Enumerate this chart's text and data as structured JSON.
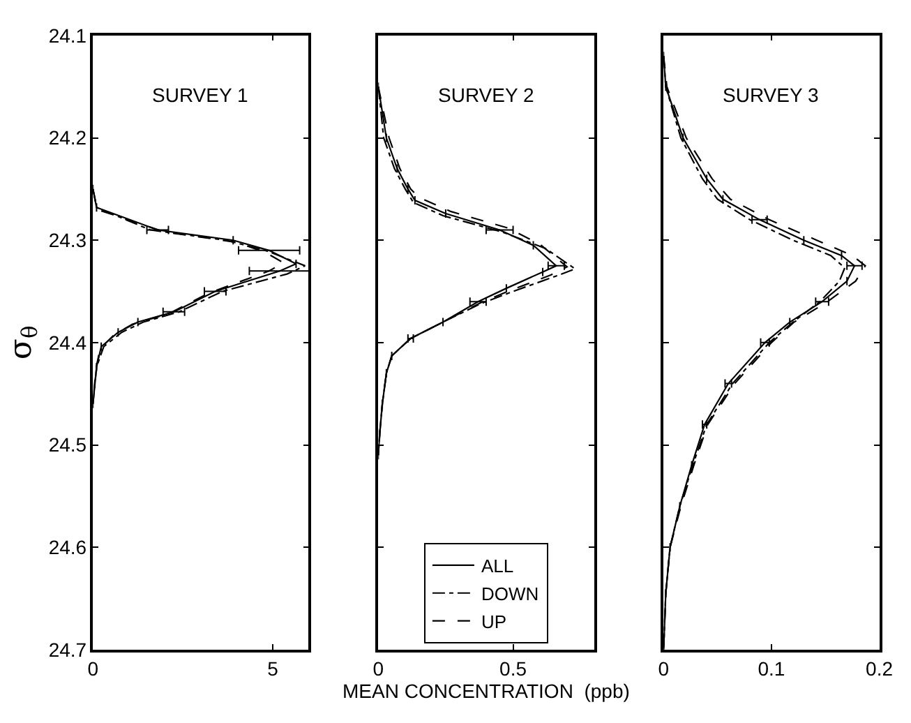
{
  "chart_data": [
    {
      "type": "line",
      "title": "SURVEY 1",
      "ylabel": "σ$_{θ}$",
      "xlim": [
        0,
        6
      ],
      "xticks": [
        0,
        5
      ],
      "ylim": [
        24.7,
        24.1
      ],
      "yticks": [
        24.1,
        24.2,
        24.3,
        24.4,
        24.5,
        24.6,
        24.7
      ],
      "marker": "none",
      "series": [
        {
          "color": "#000000",
          "line_style": "solid",
          "values": [
            24.25,
            24.268,
            24.29,
            24.3,
            24.31,
            24.323,
            24.33,
            24.35,
            24.37,
            24.38,
            24.39,
            24.404,
            24.424,
            24.46
          ],
          "x": [
            0,
            0.1,
            1.8,
            3.9,
            4.9,
            5.65,
            5.2,
            3.4,
            2.25,
            1.25,
            0.7,
            0.23,
            0.1,
            0
          ],
          "xerrors": [
            null,
            null,
            0.3,
            null,
            0.85,
            null,
            0.85,
            0.3,
            0.3,
            null,
            null,
            null,
            null,
            null
          ]
        },
        {
          "color": "#000000",
          "line_style": "dashdot",
          "values": [
            24.25,
            24.268,
            24.29,
            24.3,
            24.31,
            24.325,
            24.333,
            24.35,
            24.37,
            24.38,
            24.39,
            24.404,
            24.424,
            24.46
          ],
          "x": [
            0,
            0.1,
            1.6,
            3.7,
            4.8,
            5.9,
            5.4,
            3.6,
            2.4,
            1.4,
            0.8,
            0.3,
            0.1,
            0
          ]
        },
        {
          "color": "#000000",
          "line_style": "dash",
          "values": [
            24.25,
            24.27,
            24.292,
            24.302,
            24.312,
            24.322,
            24.33,
            24.352,
            24.372,
            24.382,
            24.392,
            24.406,
            24.426,
            24.46
          ],
          "x": [
            0,
            0.12,
            2.0,
            4.0,
            4.8,
            5.3,
            4.9,
            3.2,
            2.1,
            1.1,
            0.6,
            0.2,
            0.08,
            0
          ]
        }
      ]
    },
    {
      "type": "line",
      "title": "SURVEY 2",
      "xlabel": "MEAN CONCENTRATION  (ppb)",
      "xlim": [
        0,
        0.8
      ],
      "xticks": [
        0,
        0.5
      ],
      "ylim": [
        24.7,
        24.1
      ],
      "yticks": [
        24.1,
        24.2,
        24.3,
        24.4,
        24.5,
        24.6,
        24.7
      ],
      "tick_labels": "x",
      "marker": "none",
      "legend": "bottom",
      "series": [
        {
          "name": "ALL",
          "color": "#000000",
          "line_style": "solid",
          "values": [
            24.15,
            24.2,
            24.23,
            24.25,
            24.261,
            24.274,
            24.29,
            24.305,
            24.325,
            24.331,
            24.347,
            24.36,
            24.38,
            24.396,
            24.413,
            24.43,
            24.46,
            24.49,
            24.51
          ],
          "x": [
            0,
            0.03,
            0.07,
            0.11,
            0.136,
            0.25,
            0.45,
            0.575,
            0.66,
            0.61,
            0.475,
            0.37,
            0.24,
            0.12,
            0.05,
            0.03,
            0.015,
            0.005,
            0
          ],
          "xerrors": [
            null,
            null,
            null,
            null,
            null,
            null,
            0.05,
            null,
            0.03,
            null,
            null,
            0.03,
            null,
            0.01,
            null,
            null,
            null,
            null,
            null
          ]
        },
        {
          "name": "DOWN",
          "color": "#000000",
          "line_style": "dashdot",
          "values": [
            24.15,
            24.2,
            24.23,
            24.25,
            24.263,
            24.276,
            24.292,
            24.308,
            24.328,
            24.335,
            24.35,
            24.362,
            24.38,
            24.396,
            24.413,
            24.43,
            24.46,
            24.49,
            24.51
          ],
          "x": [
            0,
            0.02,
            0.06,
            0.1,
            0.13,
            0.24,
            0.46,
            0.62,
            0.73,
            0.66,
            0.5,
            0.38,
            0.24,
            0.12,
            0.05,
            0.03,
            0.015,
            0.005,
            0
          ]
        },
        {
          "name": "UP",
          "color": "#000000",
          "line_style": "dash",
          "values": [
            24.15,
            24.2,
            24.23,
            24.25,
            24.258,
            24.272,
            24.288,
            24.304,
            24.326,
            24.334,
            24.349,
            24.361,
            24.38,
            24.396,
            24.413,
            24.43,
            24.46,
            24.49,
            24.51
          ],
          "x": [
            0,
            0.04,
            0.08,
            0.12,
            0.15,
            0.27,
            0.48,
            0.6,
            0.7,
            0.64,
            0.49,
            0.38,
            0.24,
            0.12,
            0.05,
            0.03,
            0.015,
            0.005,
            0
          ]
        }
      ]
    },
    {
      "type": "line",
      "title": "SURVEY 3",
      "xlim": [
        0,
        0.2
      ],
      "xticks": [
        0,
        0.1,
        0.2
      ],
      "ylim": [
        24.7,
        24.1
      ],
      "yticks": [
        24.1,
        24.2,
        24.3,
        24.4,
        24.5,
        24.6,
        24.7
      ],
      "tick_labels": "x",
      "marker": "none",
      "series": [
        {
          "color": "#000000",
          "line_style": "solid",
          "values": [
            24.12,
            24.15,
            24.2,
            24.24,
            24.26,
            24.28,
            24.3,
            24.315,
            24.325,
            24.34,
            24.36,
            24.38,
            24.4,
            24.44,
            24.48,
            24.52,
            24.56,
            24.6,
            24.645,
            24.7
          ],
          "x": [
            0,
            0.002,
            0.018,
            0.04,
            0.055,
            0.089,
            0.13,
            0.165,
            0.177,
            0.17,
            0.147,
            0.117,
            0.094,
            0.06,
            0.038,
            0.026,
            0.015,
            0.006,
            0.002,
            0
          ],
          "xerrors": [
            null,
            null,
            null,
            null,
            null,
            0.007,
            null,
            null,
            0.007,
            null,
            0.006,
            null,
            0.004,
            0.003,
            0.002,
            null,
            null,
            null,
            null,
            null
          ]
        },
        {
          "color": "#000000",
          "line_style": "dashdot",
          "values": [
            24.12,
            24.15,
            24.2,
            24.24,
            24.26,
            24.28,
            24.3,
            24.315,
            24.327,
            24.34,
            24.36,
            24.38,
            24.4,
            24.44,
            24.48,
            24.52,
            24.56,
            24.6,
            24.645,
            24.7
          ],
          "x": [
            0,
            0.002,
            0.016,
            0.036,
            0.05,
            0.08,
            0.12,
            0.155,
            0.168,
            0.163,
            0.145,
            0.12,
            0.098,
            0.064,
            0.04,
            0.027,
            0.015,
            0.006,
            0.002,
            0
          ]
        },
        {
          "color": "#000000",
          "line_style": "dash",
          "values": [
            24.12,
            24.15,
            24.2,
            24.24,
            24.26,
            24.28,
            24.3,
            24.315,
            24.325,
            24.34,
            24.36,
            24.38,
            24.4,
            24.44,
            24.48,
            24.52,
            24.56,
            24.6,
            24.645,
            24.7
          ],
          "x": [
            0,
            0.003,
            0.021,
            0.045,
            0.062,
            0.098,
            0.142,
            0.175,
            0.187,
            0.178,
            0.152,
            0.121,
            0.1,
            0.066,
            0.041,
            0.028,
            0.016,
            0.006,
            0.002,
            0
          ]
        }
      ]
    }
  ]
}
